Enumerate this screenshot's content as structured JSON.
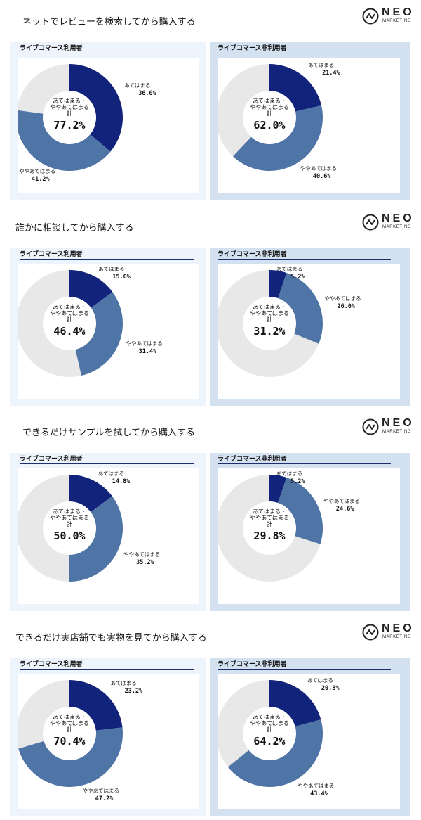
{
  "brand": {
    "name": "NEO",
    "sub": "MARKETING"
  },
  "colors": {
    "agree": "#11237a",
    "somewhat": "#4f75a6",
    "rest": "#e8e8e8",
    "accent_line": "#1f2f6b"
  },
  "center_lines": [
    "あてはまる・",
    "ややあてはまる",
    "計"
  ],
  "sections": [
    {
      "title": "ネットでレビューを検索してから購入する",
      "panels": [
        {
          "label": "ライブコマース利用者",
          "agree_label": "あてはまる",
          "agree_value": "36.0%",
          "somewhat_label": "ややあてはまる",
          "somewhat_value": "41.2%",
          "total": "77.2%"
        },
        {
          "label": "ライブコマース非利用者",
          "agree_label": "あてはまる",
          "agree_value": "21.4%",
          "somewhat_label": "ややあてはまる",
          "somewhat_value": "40.6%",
          "total": "62.0%"
        }
      ]
    },
    {
      "title": "誰かに相談してから購入する",
      "panels": [
        {
          "label": "ライブコマース利用者",
          "agree_label": "あてはまる",
          "agree_value": "15.0%",
          "somewhat_label": "ややあてはまる",
          "somewhat_value": "31.4%",
          "total": "46.4%"
        },
        {
          "label": "ライブコマース非利用者",
          "agree_label": "あてはまる",
          "agree_value": "5.2%",
          "somewhat_label": "ややあてはまる",
          "somewhat_value": "26.0%",
          "total": "31.2%"
        }
      ]
    },
    {
      "title": "できるだけサンプルを試してから購入する",
      "panels": [
        {
          "label": "ライブコマース利用者",
          "agree_label": "あてはまる",
          "agree_value": "14.8%",
          "somewhat_label": "ややあてはまる",
          "somewhat_value": "35.2%",
          "total": "50.0%"
        },
        {
          "label": "ライブコマース非利用者",
          "agree_label": "あてはまる",
          "agree_value": "5.2%",
          "somewhat_label": "ややあてはまる",
          "somewhat_value": "24.6%",
          "total": "29.8%"
        }
      ]
    },
    {
      "title": "できるだけ実店舗でも実物を見てから購入する",
      "panels": [
        {
          "label": "ライブコマース利用者",
          "agree_label": "あてはまる",
          "agree_value": "23.2%",
          "somewhat_label": "ややあてはまる",
          "somewhat_value": "47.2%",
          "total": "70.4%"
        },
        {
          "label": "ライブコマース非利用者",
          "agree_label": "あてはまる",
          "agree_value": "20.8%",
          "somewhat_label": "ややあてはまる",
          "somewhat_value": "43.4%",
          "total": "64.2%"
        }
      ]
    }
  ],
  "chart_data": [
    {
      "type": "pie",
      "title": "ネットでレビューを検索してから購入する",
      "subtitle": "ライブコマース利用者",
      "categories": [
        "あてはまる",
        "ややあてはまる"
      ],
      "values": [
        36.0,
        41.2
      ]
    },
    {
      "type": "pie",
      "title": "ネットでレビューを検索してから購入する",
      "subtitle": "ライブコマース非利用者",
      "categories": [
        "あてはまる",
        "ややあてはまる"
      ],
      "values": [
        21.4,
        40.6
      ]
    },
    {
      "type": "pie",
      "title": "誰かに相談してから購入する",
      "subtitle": "ライブコマース利用者",
      "categories": [
        "あてはまる",
        "ややあてはまる"
      ],
      "values": [
        15.0,
        31.4
      ]
    },
    {
      "type": "pie",
      "title": "誰かに相談してから購入する",
      "subtitle": "ライブコマース非利用者",
      "categories": [
        "あてはまる",
        "ややあてはまる"
      ],
      "values": [
        5.2,
        26.0
      ]
    },
    {
      "type": "pie",
      "title": "できるだけサンプルを試してから購入する",
      "subtitle": "ライブコマース利用者",
      "categories": [
        "あてはまる",
        "ややあてはまる"
      ],
      "values": [
        14.8,
        35.2
      ]
    },
    {
      "type": "pie",
      "title": "できるだけサンプルを試してから購入する",
      "subtitle": "ライブコマース非利用者",
      "categories": [
        "あてはまる",
        "ややあてはまる"
      ],
      "values": [
        5.2,
        24.6
      ]
    },
    {
      "type": "pie",
      "title": "できるだけ実店舗でも実物を見てから購入する",
      "subtitle": "ライブコマース利用者",
      "categories": [
        "あてはまる",
        "ややあてはまる"
      ],
      "values": [
        23.2,
        47.2
      ]
    },
    {
      "type": "pie",
      "title": "できるだけ実店舗でも実物を見てから購入する",
      "subtitle": "ライブコマース非利用者",
      "categories": [
        "あてはまる",
        "ややあてはまる"
      ],
      "values": [
        20.8,
        43.4
      ]
    }
  ]
}
